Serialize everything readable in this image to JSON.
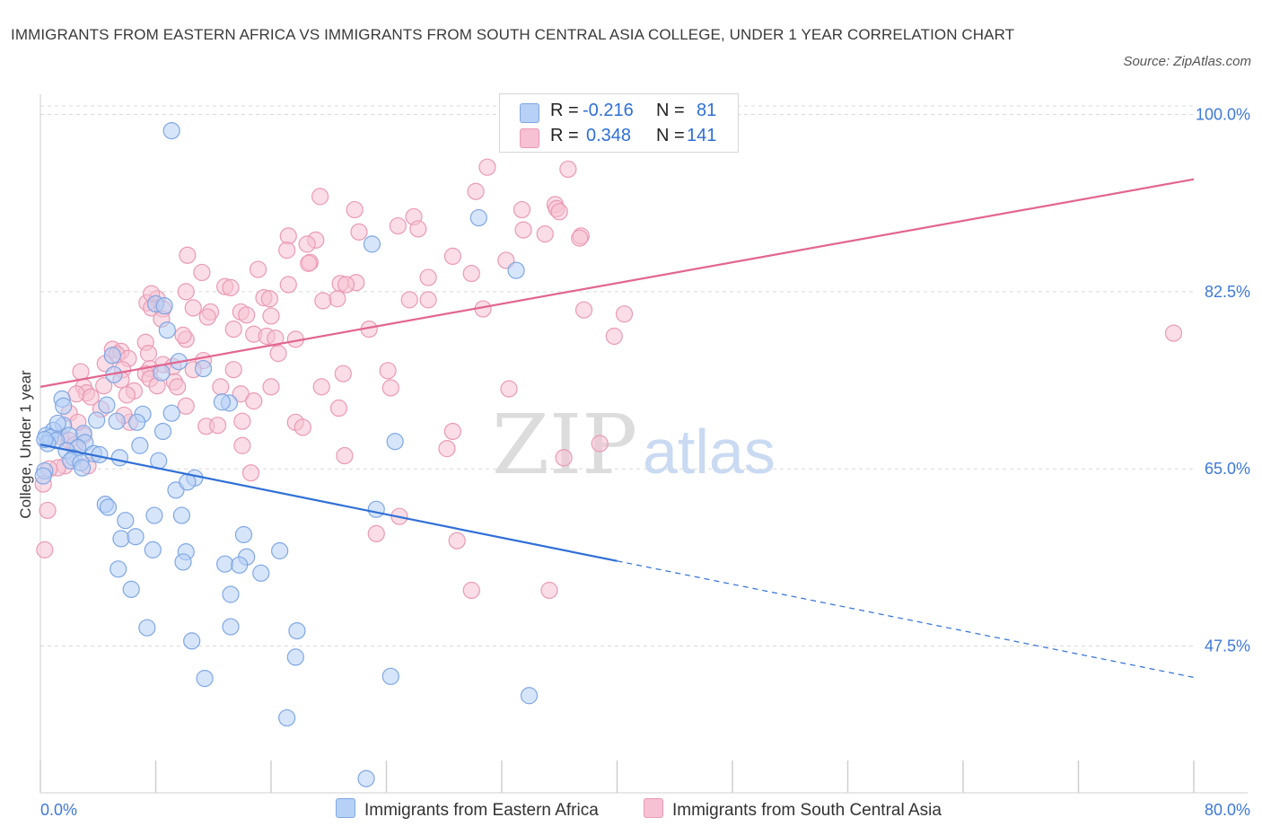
{
  "title": "IMMIGRANTS FROM EASTERN AFRICA VS IMMIGRANTS FROM SOUTH CENTRAL ASIA COLLEGE, UNDER 1 YEAR CORRELATION CHART",
  "source": "Source: ZipAtlas.com",
  "watermark": {
    "zip": "ZIP",
    "atlas": "atlas"
  },
  "colors": {
    "blue": "#2f6fd6",
    "blue_fill": "#b7d0f5",
    "blue_stroke": "#7fa7e3",
    "pink": "#e2668f",
    "pink_fill": "#f6c1d2",
    "pink_stroke": "#ea9ab4",
    "tick_label": "#3c78d8",
    "grid": "#d9d9d9"
  },
  "legend": {
    "r_label": "R =",
    "n_label": "N =",
    "entries": [
      {
        "r": "-0.216",
        "n": "81",
        "color": "blue"
      },
      {
        "r": "0.348",
        "n": "141",
        "color": "pink"
      }
    ]
  },
  "chart_data": {
    "type": "scatter",
    "xlabel": "",
    "ylabel": "College, Under 1 year",
    "xlim": [
      0,
      80
    ],
    "ylim": [
      33,
      102
    ],
    "x_tick_labels": [
      {
        "value": 0,
        "label": "0.0%"
      },
      {
        "value": 80,
        "label": "80.0%"
      }
    ],
    "y_tick_labels": [
      {
        "value": 100,
        "label": "100.0%"
      },
      {
        "value": 82.5,
        "label": "82.5%"
      },
      {
        "value": 65,
        "label": "65.0%"
      },
      {
        "value": 47.5,
        "label": "47.5%"
      }
    ],
    "grid": true,
    "legend_position": "top-center",
    "series": [
      {
        "name": "Immigrants from Eastern Africa",
        "color": "blue",
        "trend": {
          "x0": 0,
          "y0": 67.4,
          "x1": 40,
          "y1": 55.9,
          "dashed_to_x": 80,
          "dashed_to_y": 44.4
        },
        "points": [
          [
            9.1,
            98.4
          ],
          [
            30.4,
            89.8
          ],
          [
            23,
            87.2
          ],
          [
            33,
            84.6
          ],
          [
            8,
            81.3
          ],
          [
            8.8,
            78.7
          ],
          [
            5,
            76.2
          ],
          [
            9.6,
            75.6
          ],
          [
            8.4,
            74.5
          ],
          [
            5.1,
            74.3
          ],
          [
            1.5,
            71.9
          ],
          [
            4.6,
            71.3
          ],
          [
            1.6,
            71.2
          ],
          [
            13.1,
            71.5
          ],
          [
            9.1,
            70.5
          ],
          [
            7.1,
            70.4
          ],
          [
            3.9,
            69.8
          ],
          [
            6.7,
            69.6
          ],
          [
            5.3,
            69.7
          ],
          [
            1.6,
            69.3
          ],
          [
            0.9,
            68.8
          ],
          [
            8.5,
            68.7
          ],
          [
            3,
            68.5
          ],
          [
            2,
            68.3
          ],
          [
            0.4,
            68.3
          ],
          [
            0.7,
            68.1
          ],
          [
            1.1,
            67.8
          ],
          [
            0.5,
            67.5
          ],
          [
            3.1,
            67.6
          ],
          [
            6.9,
            67.3
          ],
          [
            24.6,
            67.7
          ],
          [
            2.6,
            67.1
          ],
          [
            1.8,
            66.8
          ],
          [
            3.7,
            66.5
          ],
          [
            2.3,
            66.1
          ],
          [
            5.5,
            66.1
          ],
          [
            2.1,
            65.8
          ],
          [
            2.8,
            65.6
          ],
          [
            8.2,
            65.8
          ],
          [
            2.9,
            65.1
          ],
          [
            0.3,
            64.8
          ],
          [
            10.7,
            64.1
          ],
          [
            9.4,
            62.9
          ],
          [
            4.5,
            61.5
          ],
          [
            4.7,
            61.2
          ],
          [
            23.3,
            61
          ],
          [
            7.9,
            60.4
          ],
          [
            9.8,
            60.4
          ],
          [
            5.9,
            59.9
          ],
          [
            14.1,
            58.5
          ],
          [
            5.6,
            58.1
          ],
          [
            6.6,
            58.3
          ],
          [
            7.8,
            57
          ],
          [
            10.1,
            56.8
          ],
          [
            16.6,
            56.9
          ],
          [
            14.3,
            56.3
          ],
          [
            9.9,
            55.8
          ],
          [
            12.8,
            55.6
          ],
          [
            13.8,
            55.5
          ],
          [
            5.4,
            55.1
          ],
          [
            15.3,
            54.7
          ],
          [
            6.3,
            53.1
          ],
          [
            13.2,
            52.6
          ],
          [
            7.4,
            49.3
          ],
          [
            13.2,
            49.4
          ],
          [
            17.8,
            49
          ],
          [
            10.5,
            48
          ],
          [
            17.7,
            46.4
          ],
          [
            11.4,
            44.3
          ],
          [
            24.3,
            44.5
          ],
          [
            33.9,
            42.6
          ],
          [
            17.1,
            40.4
          ],
          [
            22.6,
            34.4
          ],
          [
            0.2,
            64.3
          ],
          [
            0.3,
            67.9
          ],
          [
            1.2,
            69.5
          ],
          [
            4.1,
            66.4
          ],
          [
            8.6,
            81.1
          ],
          [
            10.2,
            63.7
          ],
          [
            12.6,
            71.6
          ],
          [
            11.3,
            74.9
          ]
        ]
      },
      {
        "name": "Immigrants from South Central Asia",
        "color": "pink",
        "trend": {
          "x0": 0,
          "y0": 73.1,
          "x1": 80,
          "y1": 93.6
        },
        "points": [
          [
            31,
            94.8
          ],
          [
            36.6,
            94.6
          ],
          [
            30.2,
            92.4
          ],
          [
            19.4,
            91.9
          ],
          [
            35.7,
            91.1
          ],
          [
            21.8,
            90.6
          ],
          [
            35.8,
            90.7
          ],
          [
            33.4,
            90.6
          ],
          [
            36,
            90.4
          ],
          [
            25.9,
            89.9
          ],
          [
            24.8,
            89
          ],
          [
            26.2,
            88.7
          ],
          [
            33.5,
            88.6
          ],
          [
            22.1,
            88.4
          ],
          [
            35,
            88.2
          ],
          [
            37.5,
            88
          ],
          [
            17.2,
            88
          ],
          [
            37.4,
            87.8
          ],
          [
            19.1,
            87.6
          ],
          [
            18.5,
            87.2
          ],
          [
            17.1,
            86.6
          ],
          [
            10.2,
            86.1
          ],
          [
            28.6,
            86
          ],
          [
            18.7,
            85.4
          ],
          [
            32.3,
            85.6
          ],
          [
            18.6,
            85.3
          ],
          [
            15.1,
            84.7
          ],
          [
            11.2,
            84.4
          ],
          [
            29.9,
            84.3
          ],
          [
            26.9,
            83.9
          ],
          [
            17.2,
            83.2
          ],
          [
            21.9,
            83.4
          ],
          [
            20.8,
            83.3
          ],
          [
            12.8,
            83
          ],
          [
            21.2,
            83.2
          ],
          [
            13.2,
            82.9
          ],
          [
            10.1,
            82.5
          ],
          [
            8.1,
            81.8
          ],
          [
            15.5,
            81.9
          ],
          [
            15.9,
            81.8
          ],
          [
            20.6,
            81.8
          ],
          [
            25.6,
            81.7
          ],
          [
            26.9,
            81.7
          ],
          [
            19.6,
            81.6
          ],
          [
            7.4,
            81.4
          ],
          [
            7.7,
            80.9
          ],
          [
            8.5,
            80.8
          ],
          [
            10.6,
            80.9
          ],
          [
            11.8,
            80.5
          ],
          [
            13.9,
            80.5
          ],
          [
            30.7,
            80.8
          ],
          [
            37.7,
            80.7
          ],
          [
            40.5,
            80.3
          ],
          [
            14.3,
            80.2
          ],
          [
            16,
            80.1
          ],
          [
            11.6,
            80
          ],
          [
            8.4,
            79.8
          ],
          [
            13.4,
            78.8
          ],
          [
            22.8,
            78.8
          ],
          [
            14.8,
            78.3
          ],
          [
            15.7,
            78.1
          ],
          [
            39.8,
            78.1
          ],
          [
            10.1,
            77.8
          ],
          [
            17.7,
            77.8
          ],
          [
            7.3,
            77.5
          ],
          [
            78.6,
            78.4
          ],
          [
            5,
            76.8
          ],
          [
            5.6,
            76.6
          ],
          [
            5.3,
            76.3
          ],
          [
            7.5,
            76.4
          ],
          [
            16.5,
            76.4
          ],
          [
            6.1,
            75.9
          ],
          [
            11.3,
            75.7
          ],
          [
            4.5,
            75.4
          ],
          [
            8.5,
            75.3
          ],
          [
            9.2,
            75.1
          ],
          [
            7.6,
            74.9
          ],
          [
            10.6,
            74.8
          ],
          [
            13.4,
            74.8
          ],
          [
            5.7,
            74.8
          ],
          [
            2.8,
            74.6
          ],
          [
            24.1,
            74.7
          ],
          [
            7.3,
            74.4
          ],
          [
            21,
            74.4
          ],
          [
            7.6,
            73.9
          ],
          [
            5.6,
            73.8
          ],
          [
            9.3,
            73.6
          ],
          [
            8.1,
            73.2
          ],
          [
            9.5,
            73.1
          ],
          [
            3,
            73.1
          ],
          [
            4.4,
            73.2
          ],
          [
            12.5,
            73.1
          ],
          [
            16,
            73.1
          ],
          [
            19.5,
            73.1
          ],
          [
            32.5,
            72.9
          ],
          [
            24.3,
            73
          ],
          [
            6.5,
            72.7
          ],
          [
            13.9,
            72.4
          ],
          [
            3.2,
            72.5
          ],
          [
            6,
            72.3
          ],
          [
            2.5,
            72.4
          ],
          [
            3.5,
            72.1
          ],
          [
            14.8,
            71.7
          ],
          [
            10.1,
            71.2
          ],
          [
            20.7,
            71
          ],
          [
            2,
            70.5
          ],
          [
            6.2,
            69.6
          ],
          [
            14,
            69.7
          ],
          [
            17.7,
            69.6
          ],
          [
            11.5,
            69.2
          ],
          [
            12.3,
            69.3
          ],
          [
            18.2,
            69.1
          ],
          [
            28.6,
            68.7
          ],
          [
            3,
            68.3
          ],
          [
            1.4,
            68.2
          ],
          [
            2,
            67.8
          ],
          [
            2.4,
            67.4
          ],
          [
            14,
            67.3
          ],
          [
            38.8,
            67.5
          ],
          [
            28.2,
            67
          ],
          [
            21.1,
            66.3
          ],
          [
            36.3,
            66.1
          ],
          [
            1.7,
            65.3
          ],
          [
            3.3,
            65.3
          ],
          [
            1.2,
            65.1
          ],
          [
            14.6,
            64.6
          ],
          [
            24.9,
            60.3
          ],
          [
            0.5,
            60.9
          ],
          [
            23.3,
            58.6
          ],
          [
            28.9,
            57.9
          ],
          [
            0.3,
            57
          ],
          [
            29.9,
            53
          ],
          [
            35.3,
            53
          ],
          [
            0.6,
            65
          ],
          [
            5.8,
            70.3
          ],
          [
            2.6,
            69.6
          ],
          [
            0.2,
            63.5
          ],
          [
            4.2,
            70.9
          ],
          [
            16.3,
            77.9
          ],
          [
            7.7,
            82.3
          ],
          [
            9.9,
            78.2
          ]
        ]
      }
    ]
  }
}
